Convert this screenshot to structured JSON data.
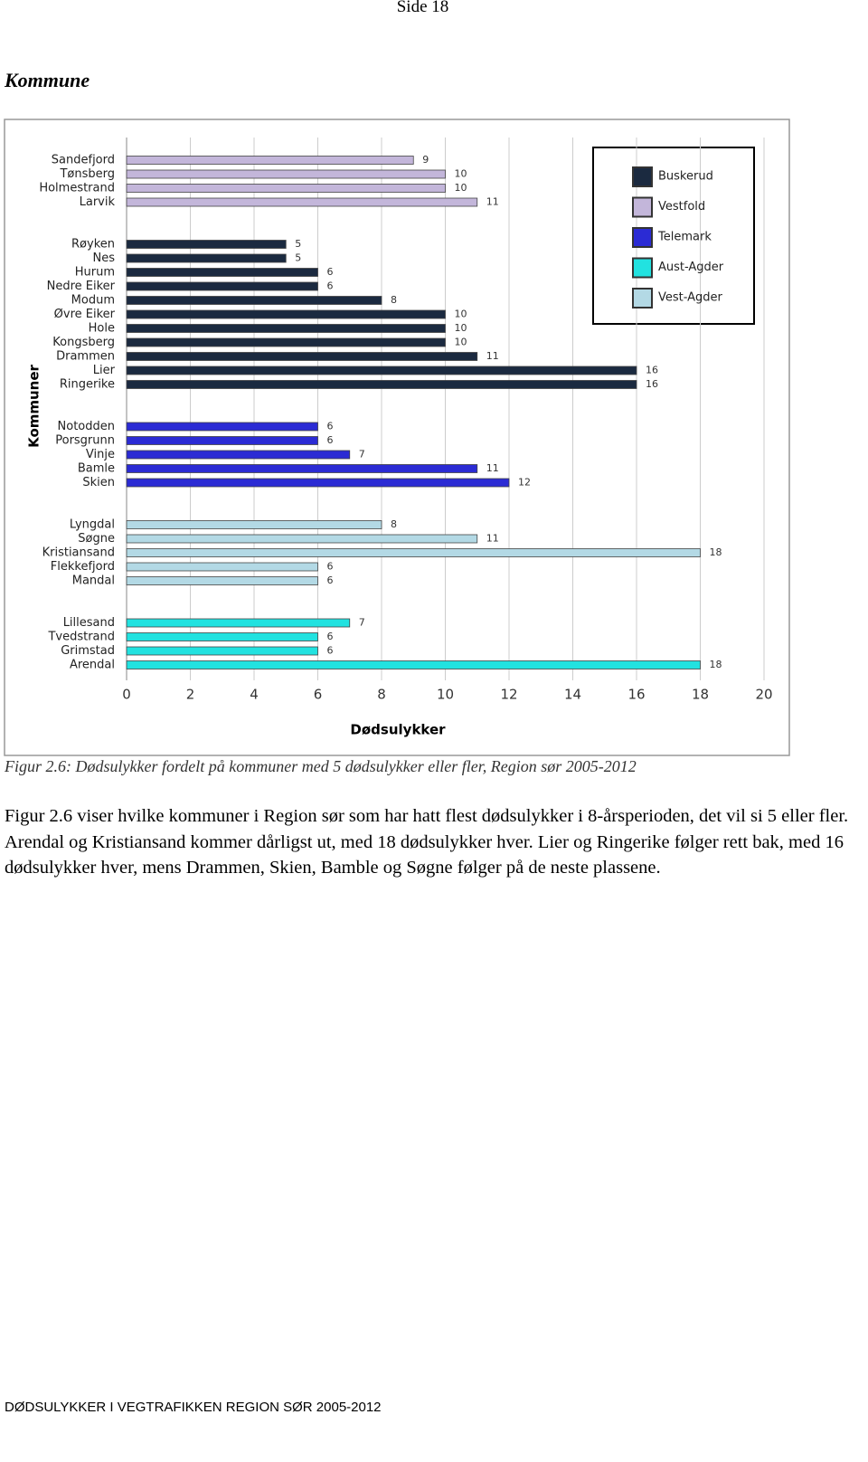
{
  "header": {
    "page": "Side 18"
  },
  "section_title": "Kommune",
  "chart_data": {
    "type": "barh",
    "xlabel": "Dødsulykker",
    "ylabel": "Kommuner",
    "xlim": [
      0,
      20
    ],
    "xticks": [
      0,
      2,
      4,
      6,
      8,
      10,
      12,
      14,
      16,
      18,
      20
    ],
    "grid": true,
    "legend": "upper right",
    "series": [
      {
        "name": "Buskerud",
        "color": "#1b2a40",
        "categories": [
          "Røyken",
          "Nes",
          "Hurum",
          "Nedre Eiker",
          "Modum",
          "Øvre Eiker",
          "Hole",
          "Kongsberg",
          "Drammen",
          "Lier",
          "Ringerike"
        ],
        "values": [
          5,
          5,
          6,
          6,
          8,
          10,
          10,
          10,
          11,
          16,
          16
        ]
      },
      {
        "name": "Vestfold",
        "color": "#c3b6da",
        "categories": [
          "Sandefjord",
          "Tønsberg",
          "Holmestrand",
          "Larvik"
        ],
        "values": [
          9,
          10,
          10,
          11
        ]
      },
      {
        "name": "Telemark",
        "color": "#2b2bd4",
        "categories": [
          "Notodden",
          "Porsgrunn",
          "Vinje",
          "Bamle",
          "Skien"
        ],
        "values": [
          6,
          6,
          7,
          11,
          12
        ]
      },
      {
        "name": "Aust-Agder",
        "color": "#22e2e0",
        "categories": [
          "Lillesand",
          "Tvedstrand",
          "Grimstad",
          "Arendal"
        ],
        "values": [
          7,
          6,
          6,
          18
        ]
      },
      {
        "name": "Vest-Agder",
        "color": "#b3d9e5",
        "categories": [
          "Lyngdal",
          "Søgne",
          "Kristiansand",
          "Flekkefjord",
          "Mandal"
        ],
        "values": [
          8,
          11,
          18,
          6,
          6
        ]
      }
    ]
  },
  "caption": "Figur 2.6: Dødsulykker fordelt på kommuner med 5 dødsulykker eller fler, Region sør 2005-2012",
  "paragraph": "Figur 2.6 viser hvilke kommuner i Region sør som har hatt flest dødsulykker i 8-årsperioden, det vil si 5 eller fler. Arendal og Kristiansand kommer dårligst ut, med 18 dødsulykker hver. Lier og Ringerike følger rett bak, med 16 dødsulykker hver, mens Drammen, Skien, Bamble og Søgne følger på de neste plassene.",
  "footer": "DØDSULYKKER I VEGTRAFIKKEN REGION SØR 2005-2012"
}
